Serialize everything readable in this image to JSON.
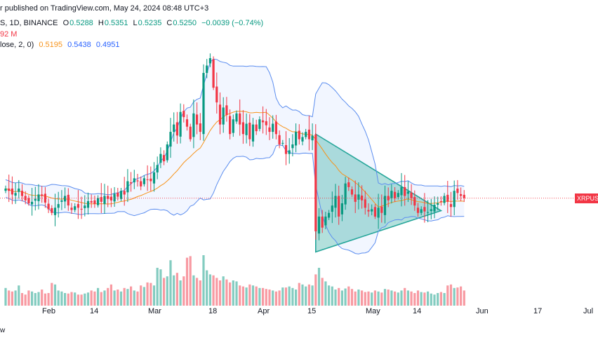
{
  "header": {
    "published": "r published on TradingView.com, May 24, 2024 08:48 UTC+3",
    "symbol": "S, 1D, BINANCE",
    "o_label": "O",
    "o_value": "0.5288",
    "h_label": "H",
    "h_value": "0.5351",
    "l_label": "L",
    "l_value": "0.5235",
    "c_label": "C",
    "c_value": "0.5250",
    "change": "−0.0039 (−0.74%)",
    "volume": "92 M",
    "bb_label": "lose, 2, 0)",
    "bb_basis": "0.5195",
    "bb_upper": "0.5438",
    "bb_lower": "0.4951"
  },
  "price_tag": "XRPUS",
  "brand": "w",
  "x_labels": [
    "Feb",
    "14",
    "Mar",
    "18",
    "Apr",
    "15",
    "May",
    "14",
    "Jun",
    "17",
    "Jul"
  ],
  "colors": {
    "up": "#089981",
    "down": "#f23645",
    "bands": "#5b8def",
    "basis": "#f7931a",
    "triangle": "#26a69a"
  },
  "chart_data": {
    "type": "candlestick",
    "interval": "1D",
    "exchange": "BINANCE",
    "last_close": 0.525,
    "bollinger": {
      "basis_last": 0.5195,
      "upper_last": 0.5438,
      "lower_last": 0.4951
    },
    "closes": [
      0.538,
      0.535,
      0.53,
      0.532,
      0.538,
      0.528,
      0.522,
      0.518,
      0.52,
      0.524,
      0.53,
      0.528,
      0.519,
      0.51,
      0.505,
      0.512,
      0.517,
      0.522,
      0.528,
      0.515,
      0.509,
      0.514,
      0.512,
      0.51,
      0.515,
      0.521,
      0.519,
      0.517,
      0.525,
      0.52,
      0.528,
      0.524,
      0.522,
      0.531,
      0.527,
      0.535,
      0.53,
      0.548,
      0.545,
      0.552,
      0.548,
      0.541,
      0.552,
      0.55,
      0.548,
      0.56,
      0.57,
      0.585,
      0.575,
      0.598,
      0.615,
      0.625,
      0.61,
      0.642,
      0.635,
      0.622,
      0.605,
      0.64,
      0.625,
      0.615,
      0.695,
      0.705,
      0.715,
      0.675,
      0.655,
      0.625,
      0.648,
      0.638,
      0.612,
      0.632,
      0.64,
      0.625,
      0.612,
      0.626,
      0.605,
      0.625,
      0.616,
      0.632,
      0.628,
      0.624,
      0.615,
      0.626,
      0.612,
      0.598,
      0.6,
      0.585,
      0.59,
      0.598,
      0.615,
      0.605,
      0.608,
      0.615,
      0.605,
      0.61,
      0.48,
      0.5,
      0.485,
      0.5,
      0.505,
      0.515,
      0.528,
      0.5,
      0.518,
      0.545,
      0.54,
      0.53,
      0.52,
      0.53,
      0.522,
      0.512,
      0.507,
      0.51,
      0.5,
      0.512,
      0.505,
      0.528,
      0.522,
      0.535,
      0.525,
      0.532,
      0.54,
      0.528,
      0.534,
      0.525,
      0.515,
      0.505,
      0.51,
      0.507,
      0.506,
      0.51,
      0.516,
      0.518,
      0.52,
      0.528,
      0.52,
      0.513,
      0.535,
      0.532,
      0.528,
      0.525
    ],
    "volumes": [
      0.35,
      0.3,
      0.28,
      0.3,
      0.4,
      0.25,
      0.22,
      0.3,
      0.28,
      0.25,
      0.27,
      0.32,
      0.24,
      0.25,
      0.45,
      0.42,
      0.3,
      0.28,
      0.25,
      0.24,
      0.27,
      0.26,
      0.22,
      0.22,
      0.24,
      0.26,
      0.3,
      0.28,
      0.35,
      0.27,
      0.3,
      0.35,
      0.42,
      0.3,
      0.32,
      0.28,
      0.35,
      0.33,
      0.38,
      0.3,
      0.28,
      0.4,
      0.37,
      0.46,
      0.45,
      0.4,
      0.75,
      0.72,
      0.55,
      0.58,
      0.9,
      0.6,
      0.65,
      0.5,
      0.58,
      0.95,
      0.98,
      0.6,
      0.55,
      0.5,
      1.0,
      0.7,
      0.62,
      0.6,
      0.55,
      0.5,
      0.58,
      0.52,
      0.46,
      0.5,
      0.48,
      0.4,
      0.38,
      0.36,
      0.42,
      0.4,
      0.38,
      0.35,
      0.35,
      0.33,
      0.32,
      0.3,
      0.28,
      0.3,
      0.36,
      0.36,
      0.38,
      0.35,
      0.32,
      0.45,
      0.42,
      0.38,
      0.42,
      0.4,
      0.62,
      0.75,
      0.55,
      0.48,
      0.4,
      0.38,
      0.32,
      0.35,
      0.3,
      0.34,
      0.38,
      0.33,
      0.28,
      0.32,
      0.3,
      0.27,
      0.28,
      0.26,
      0.3,
      0.28,
      0.26,
      0.33,
      0.32,
      0.3,
      0.28,
      0.26,
      0.3,
      0.35,
      0.3,
      0.28,
      0.25,
      0.3,
      0.27,
      0.26,
      0.28,
      0.24,
      0.22,
      0.25,
      0.27,
      0.25,
      0.4,
      0.42,
      0.35,
      0.36,
      0.38,
      0.3
    ]
  }
}
